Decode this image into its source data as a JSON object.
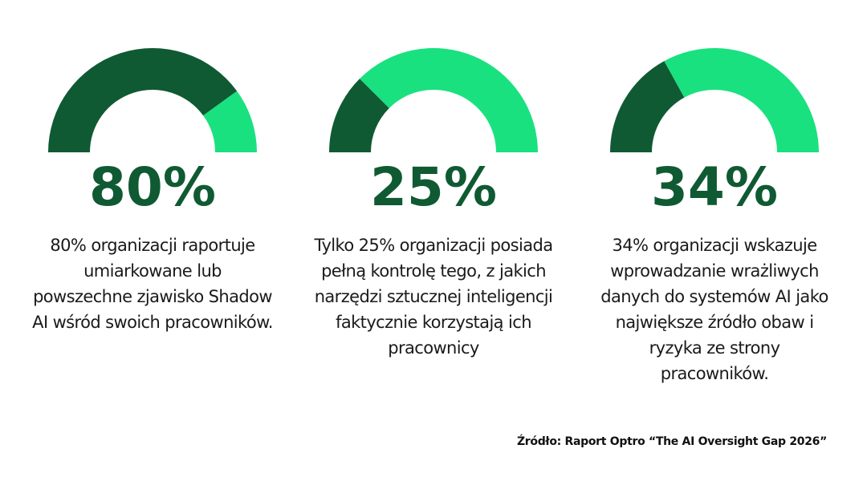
{
  "colors": {
    "dark": "#0f5a32",
    "light": "#19e17f"
  },
  "chart_data": [
    {
      "type": "pie",
      "value": 80,
      "remainder": 20,
      "label": "80%",
      "description": "80% organizacji raportuje umiarkowane lub powszechne zjawisko Shadow AI wśród swoich pracowników."
    },
    {
      "type": "pie",
      "value": 25,
      "remainder": 75,
      "label": "25%",
      "description": "Tylko 25% organizacji posiada pełną kontrolę tego, z jakich narzędzi sztucznej inteligencji faktycznie korzystają ich pracownicy"
    },
    {
      "type": "pie",
      "value": 34,
      "remainder": 66,
      "label": "34%",
      "description": "34% organizacji wskazuje wprowadzanie wrażliwych danych do systemów AI jako największe źródło obaw i ryzyka ze strony pracowników."
    }
  ],
  "source": "Źródło: Raport Optro “The AI Oversight Gap 2026”"
}
